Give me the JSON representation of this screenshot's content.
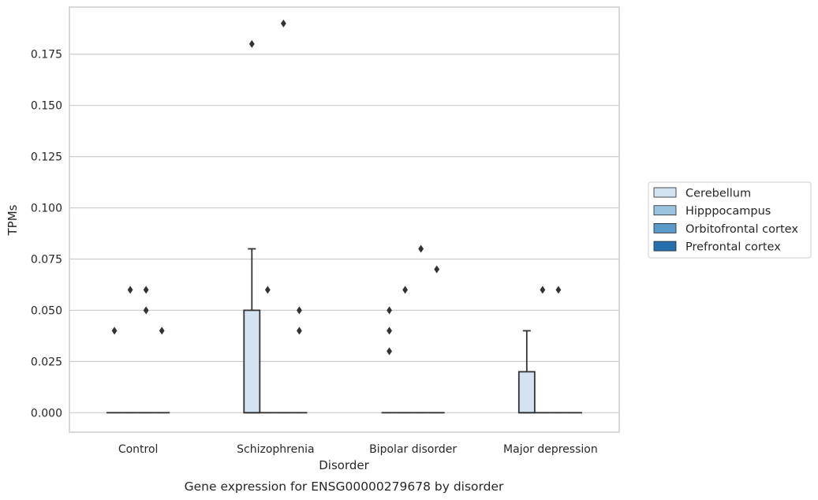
{
  "colors": {
    "cerebellum": "#d4e3f2",
    "hippocampus": "#9ac3df",
    "orbitofrontal": "#5a9ac8",
    "prefrontal": "#2770b0",
    "grid": "#cccccc",
    "frame": "#cccccc",
    "line": "#333333"
  },
  "chart_data": {
    "type": "box",
    "title": "",
    "caption": "Gene expression for ENSG00000279678 by disorder",
    "xlabel": "Disorder",
    "ylabel": "TPMs",
    "categories": [
      "Control",
      "Schizophrenia",
      "Bipolar disorder",
      "Major depression"
    ],
    "ylim": [
      -0.0095,
      0.198
    ],
    "yticks": [
      0.0,
      0.025,
      0.05,
      0.075,
      0.1,
      0.125,
      0.15,
      0.175
    ],
    "ytick_labels": [
      "0.000",
      "0.025",
      "0.050",
      "0.075",
      "0.100",
      "0.125",
      "0.150",
      "0.175"
    ],
    "grid": true,
    "legend_position": "right",
    "series": [
      {
        "name": "Cerebellum",
        "color_key": "cerebellum",
        "boxes": [
          {
            "q1": 0,
            "median": 0,
            "q3": 0,
            "whisker_low": 0,
            "whisker_high": 0,
            "outliers": [
              0.04
            ]
          },
          {
            "q1": 0,
            "median": 0,
            "q3": 0.05,
            "whisker_low": 0,
            "whisker_high": 0.08,
            "outliers": [
              0.18
            ]
          },
          {
            "q1": 0,
            "median": 0,
            "q3": 0,
            "whisker_low": 0,
            "whisker_high": 0,
            "outliers": [
              0.03,
              0.04,
              0.05
            ]
          },
          {
            "q1": 0,
            "median": 0,
            "q3": 0.02,
            "whisker_low": 0,
            "whisker_high": 0.04,
            "outliers": []
          }
        ]
      },
      {
        "name": "Hipppocampus",
        "color_key": "hippocampus",
        "boxes": [
          {
            "q1": 0,
            "median": 0,
            "q3": 0,
            "whisker_low": 0,
            "whisker_high": 0,
            "outliers": [
              0.06
            ]
          },
          {
            "q1": 0,
            "median": 0,
            "q3": 0,
            "whisker_low": 0,
            "whisker_high": 0,
            "outliers": [
              0.06
            ]
          },
          {
            "q1": 0,
            "median": 0,
            "q3": 0,
            "whisker_low": 0,
            "whisker_high": 0,
            "outliers": [
              0.06
            ]
          },
          {
            "q1": 0,
            "median": 0,
            "q3": 0,
            "whisker_low": 0,
            "whisker_high": 0,
            "outliers": [
              0.06
            ]
          }
        ]
      },
      {
        "name": "Orbitofrontal cortex",
        "color_key": "orbitofrontal",
        "boxes": [
          {
            "q1": 0,
            "median": 0,
            "q3": 0,
            "whisker_low": 0,
            "whisker_high": 0,
            "outliers": [
              0.05,
              0.06
            ]
          },
          {
            "q1": 0,
            "median": 0,
            "q3": 0,
            "whisker_low": 0,
            "whisker_high": 0,
            "outliers": [
              0.19
            ]
          },
          {
            "q1": 0,
            "median": 0,
            "q3": 0,
            "whisker_low": 0,
            "whisker_high": 0,
            "outliers": [
              0.08
            ]
          },
          {
            "q1": 0,
            "median": 0,
            "q3": 0,
            "whisker_low": 0,
            "whisker_high": 0,
            "outliers": [
              0.06
            ]
          }
        ]
      },
      {
        "name": "Prefrontal cortex",
        "color_key": "prefrontal",
        "boxes": [
          {
            "q1": 0,
            "median": 0,
            "q3": 0,
            "whisker_low": 0,
            "whisker_high": 0,
            "outliers": [
              0.04
            ]
          },
          {
            "q1": 0,
            "median": 0,
            "q3": 0,
            "whisker_low": 0,
            "whisker_high": 0,
            "outliers": [
              0.04,
              0.05
            ]
          },
          {
            "q1": 0,
            "median": 0,
            "q3": 0,
            "whisker_low": 0,
            "whisker_high": 0,
            "outliers": [
              0.07
            ]
          },
          {
            "q1": 0,
            "median": 0,
            "q3": 0,
            "whisker_low": 0,
            "whisker_high": 0,
            "outliers": []
          }
        ]
      }
    ]
  }
}
